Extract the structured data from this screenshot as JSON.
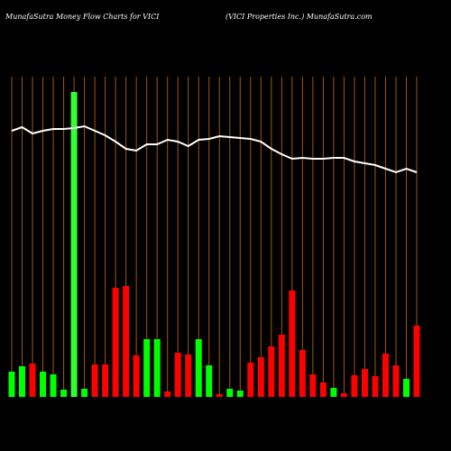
{
  "chart_data": {
    "type": "bar-line",
    "title": "MunafaSutra  Money Flow  Charts for VICI",
    "subtitle": "(VICI Properties Inc.) MunafaSutra.com",
    "series": [
      {
        "name": "money-flow",
        "kind": "bar",
        "values": [
          28,
          34,
          37,
          28,
          25,
          8,
          338,
          9,
          36,
          36,
          121,
          123,
          46,
          64,
          64,
          6,
          49,
          47,
          64,
          35,
          3,
          9,
          7,
          38,
          44,
          56,
          69,
          118,
          52,
          25,
          16,
          10,
          4,
          24,
          31,
          23,
          48,
          35,
          20,
          79
        ],
        "colors": [
          "#00ff00",
          "#00ff00",
          "#ff0000",
          "#00ff00",
          "#00ff00",
          "#00ff00",
          "#33ff33",
          "#00ff00",
          "#ff0000",
          "#ff0000",
          "#ff0000",
          "#ff0000",
          "#ff0000",
          "#00ff00",
          "#00ff00",
          "#ff0000",
          "#ff0000",
          "#ff0000",
          "#00ff00",
          "#00ff00",
          "#ff0000",
          "#00ff00",
          "#00ff00",
          "#ff0000",
          "#ff0000",
          "#ff0000",
          "#ff0000",
          "#ff0000",
          "#ff0000",
          "#ff0000",
          "#ff0000",
          "#00ff00",
          "#ff0000",
          "#ff0000",
          "#ff0000",
          "#ff0000",
          "#ff0000",
          "#ff0000",
          "#00ff00",
          "#ff0000"
        ]
      },
      {
        "name": "price",
        "kind": "line",
        "color": "#ffffff",
        "values": [
          295,
          299,
          292,
          295,
          297,
          297,
          298,
          300,
          295,
          290,
          283,
          275,
          273,
          280,
          280,
          285,
          283,
          278,
          285,
          286,
          289,
          288,
          287,
          286,
          283,
          275,
          269,
          264,
          265,
          264,
          264,
          265,
          265,
          261,
          259,
          257,
          253,
          249,
          253,
          249
        ]
      }
    ],
    "column_line_color": "#a0570f"
  }
}
